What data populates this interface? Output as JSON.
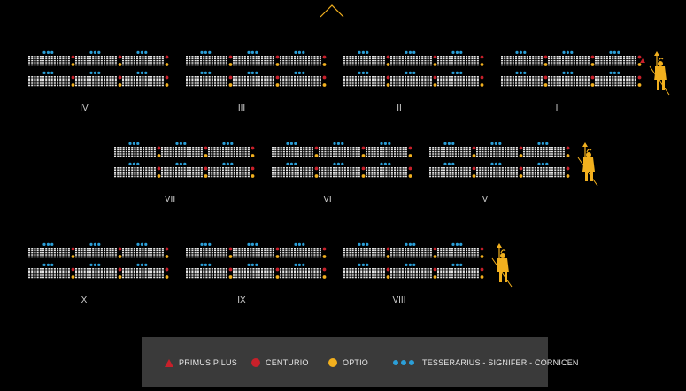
{
  "cohorts": [
    {
      "numeral": "IV",
      "primus_pilus": false,
      "standard_bearer": false
    },
    {
      "numeral": "III",
      "primus_pilus": false,
      "standard_bearer": false
    },
    {
      "numeral": "II",
      "primus_pilus": false,
      "standard_bearer": false
    },
    {
      "numeral": "I",
      "primus_pilus": true,
      "standard_bearer": true
    },
    {
      "numeral": "VII",
      "primus_pilus": false,
      "standard_bearer": false
    },
    {
      "numeral": "VI",
      "primus_pilus": false,
      "standard_bearer": false
    },
    {
      "numeral": "V",
      "primus_pilus": false,
      "standard_bearer": true
    },
    {
      "numeral": "X",
      "primus_pilus": false,
      "standard_bearer": false
    },
    {
      "numeral": "IX",
      "primus_pilus": false,
      "standard_bearer": false
    },
    {
      "numeral": "VIII",
      "primus_pilus": false,
      "standard_bearer": true
    }
  ],
  "legend": {
    "primus_pilus": "PRIMUS PILUS",
    "centurio": "CENTURIO",
    "optio": "OPTIO",
    "tesserarius": "TESSERARIUS - SIGNIFER - CORNICEN"
  },
  "colors": {
    "background": "#000000",
    "soldier": "#e6e6e6",
    "primus_pilus": "#c8202a",
    "centurio": "#c8202a",
    "optio": "#f2b01e",
    "tesserarius": "#2b9fd8",
    "standard_bearer": "#f2b01e",
    "legend_box": "#3a3a3a",
    "chevron": "#f2b01e"
  },
  "icons": {
    "direction": "chevron-up-icon",
    "legionary": "legionary-figure-icon"
  }
}
